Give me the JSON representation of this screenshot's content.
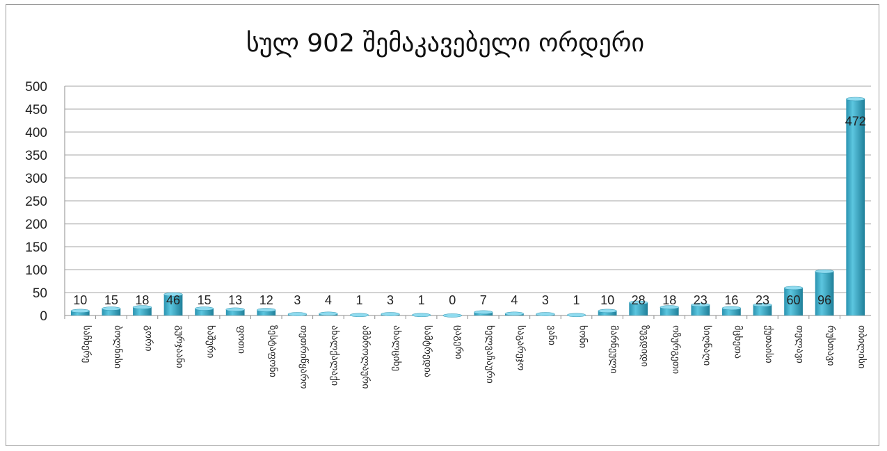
{
  "chart_data": {
    "type": "bar",
    "title": "სულ 902 შემაკავებელი ორდერი",
    "xlabel": "",
    "ylabel": "",
    "ylim": [
      0,
      500
    ],
    "yticks": [
      0,
      50,
      100,
      150,
      200,
      250,
      300,
      350,
      400,
      450,
      500
    ],
    "grid": true,
    "legend": "none",
    "bar_color": "#3fb0cc",
    "bar_color_dark": "#1f7f99",
    "categories": [
      "საჩხერე",
      "ბოლნისი",
      "გორი",
      "გურჯაანი",
      "ხაშური",
      "ფოთი",
      "ზესტაფონი",
      "თეთრიწყარო",
      "ახალქალაქი",
      "ამბროლაური",
      "ახალციხე",
      "სამტრედია",
      "ცაგერი",
      "ხელვაჩაური",
      "საგარეჯო",
      "ვანი",
      "ხონი",
      "მარნეული",
      "ზუგდიდი",
      "ოზურგეთი",
      "სიღნაღი",
      "მცხეთა",
      "ქუთაისი",
      "თელავი",
      "რუსთავი",
      "თბილისი"
    ],
    "values": [
      10,
      15,
      18,
      46,
      15,
      13,
      12,
      3,
      4,
      1,
      3,
      1,
      0,
      7,
      4,
      3,
      1,
      10,
      28,
      18,
      23,
      16,
      23,
      60,
      96,
      472
    ]
  }
}
